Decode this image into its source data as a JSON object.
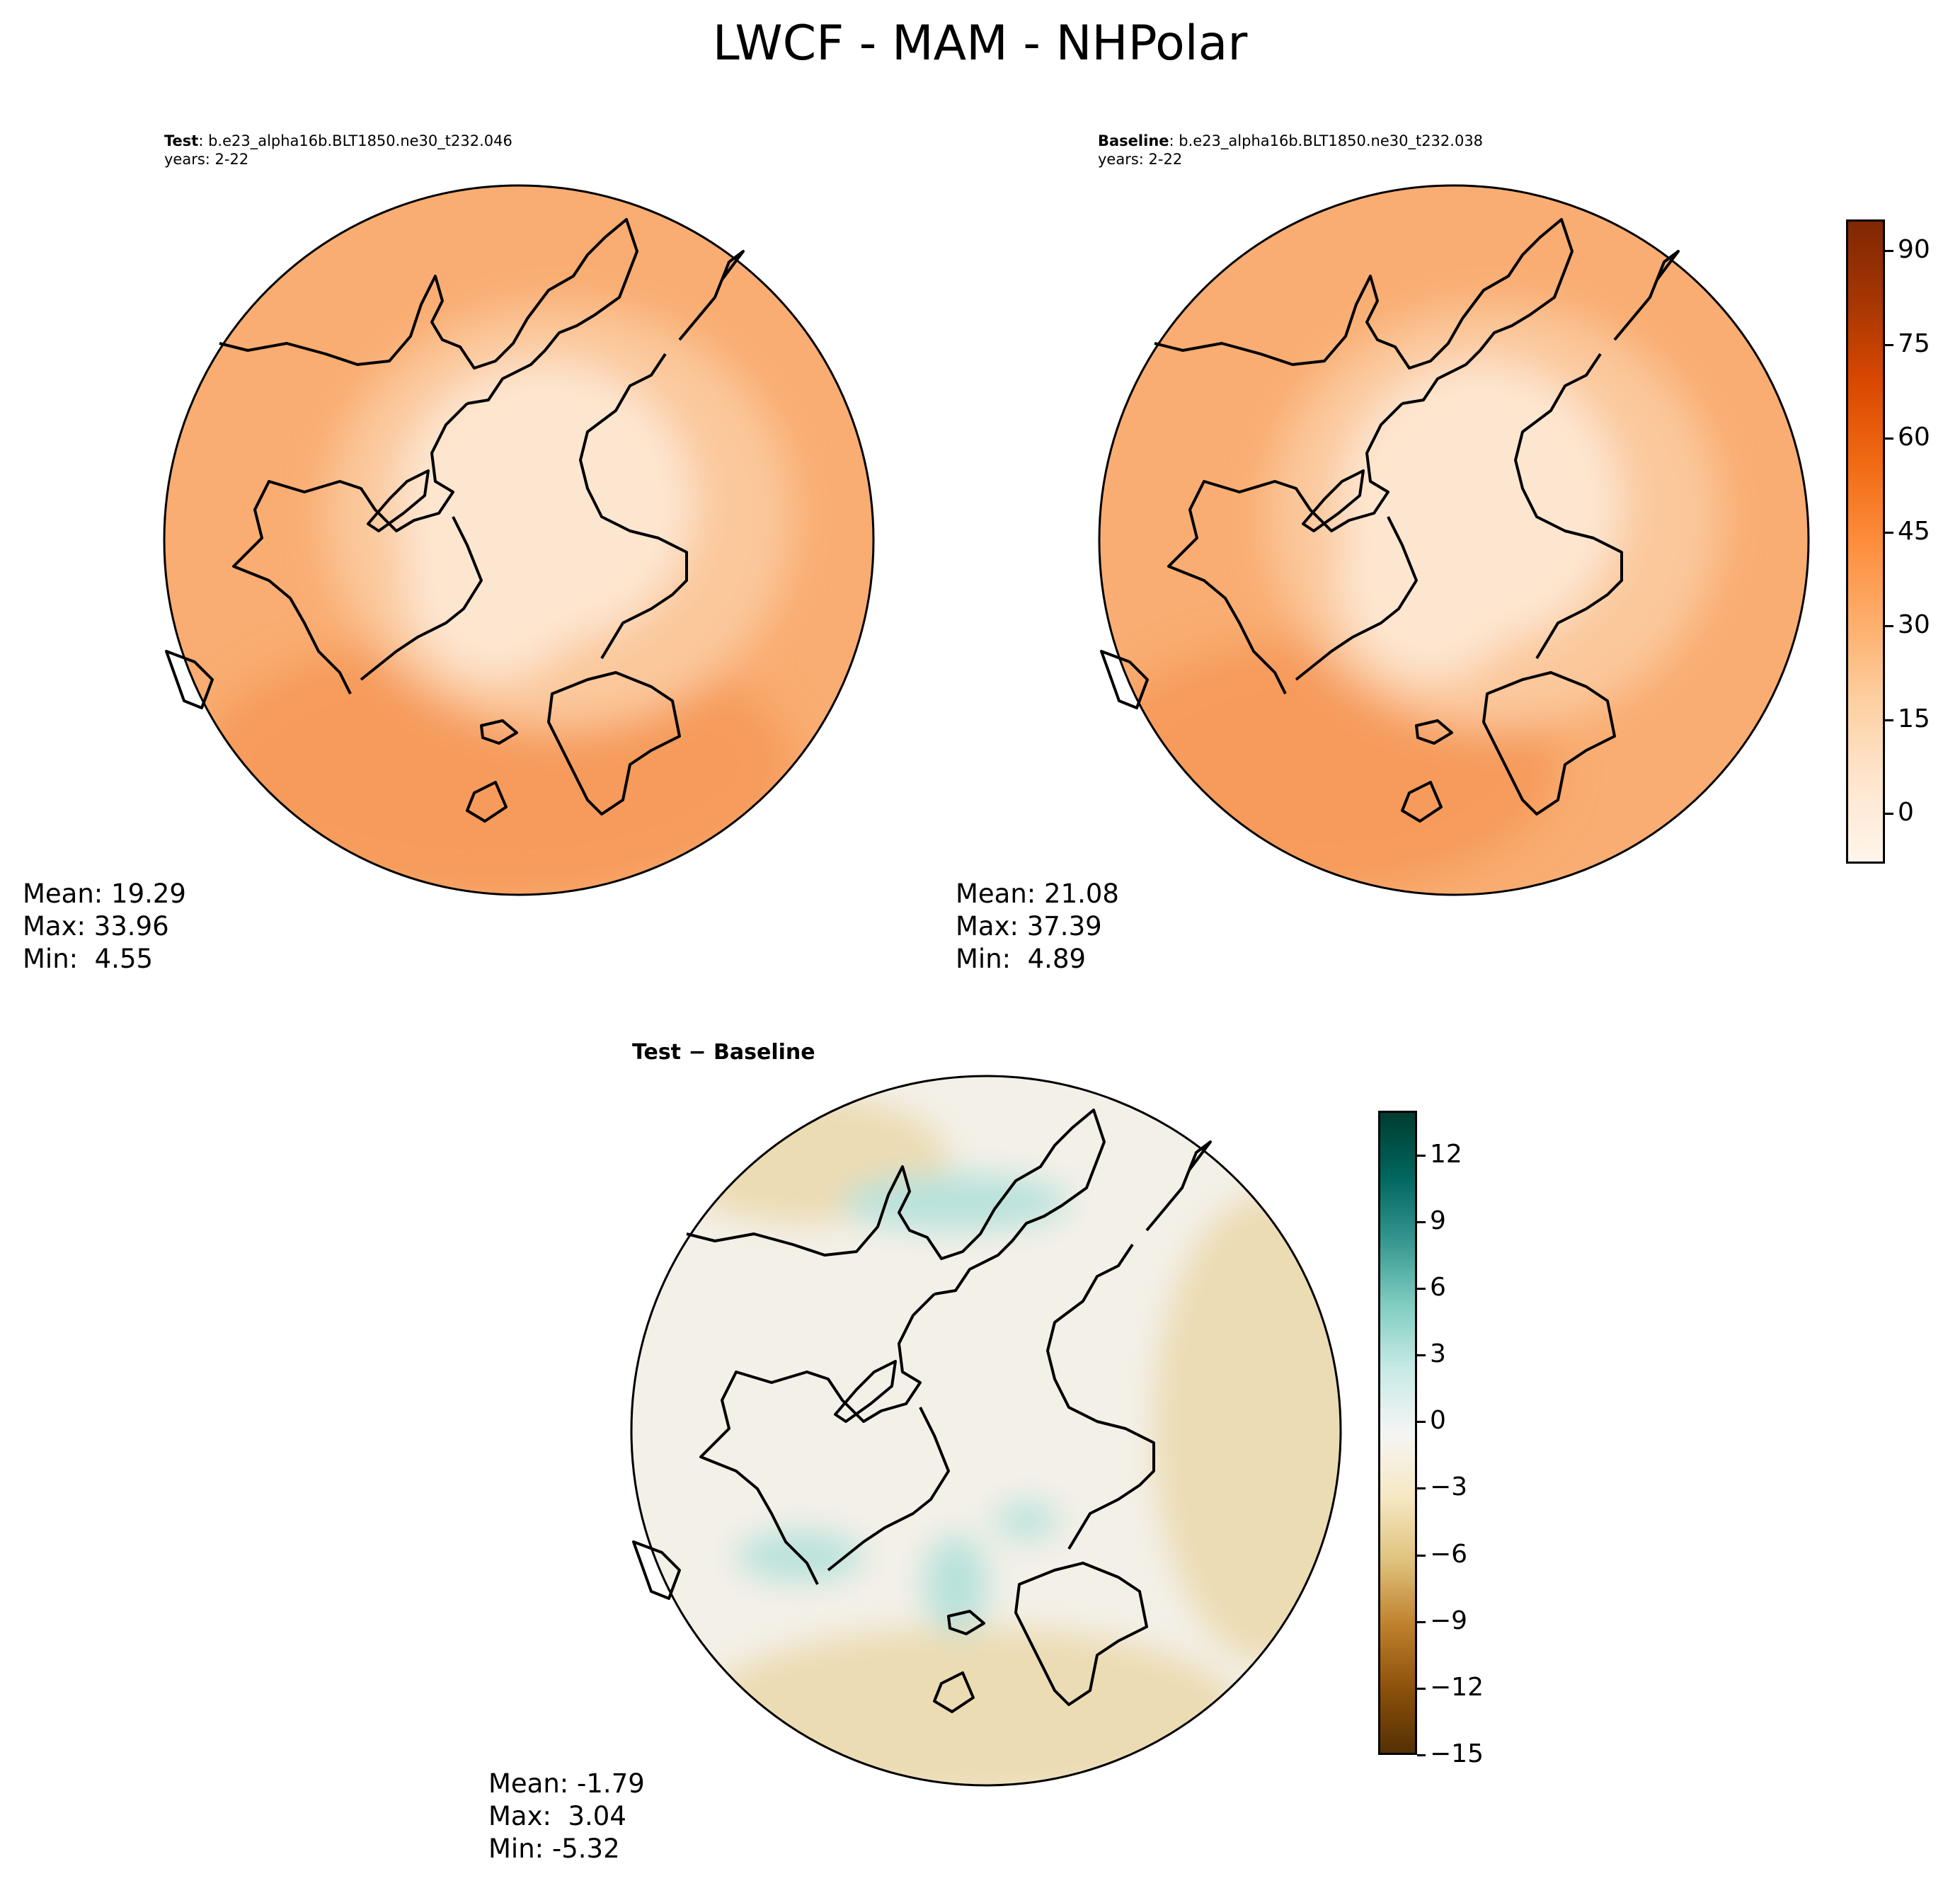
{
  "figure_title": "LWCF - MAM - NHPolar",
  "panels": {
    "test": {
      "label_bold": "Test",
      "case": ": b.e23_alpha16b.BLT1850.ne30_t232.046",
      "years": "years: 2-22",
      "mean": "Mean: 19.29",
      "max": "Max: 33.96",
      "min": "Min:  4.55"
    },
    "baseline": {
      "label_bold": "Baseline",
      "case": ": b.e23_alpha16b.BLT1850.ne30_t232.038",
      "years": "years: 2-22",
      "mean": "Mean: 21.08",
      "max": "Max: 37.39",
      "min": "Min:  4.89"
    },
    "diff": {
      "title": "Test − Baseline",
      "mean": "Mean: -1.79",
      "max": "Max:  3.04",
      "min": "Min: -5.32"
    }
  },
  "colorbars": {
    "field": {
      "ticks": [
        "90",
        "75",
        "60",
        "45",
        "30",
        "15",
        "0"
      ],
      "tick_values": [
        90,
        75,
        60,
        45,
        30,
        15,
        0
      ],
      "range": [
        -8,
        95
      ],
      "colormap": "Oranges"
    },
    "diff": {
      "ticks": [
        "12",
        "9",
        "6",
        "3",
        "0",
        "−3",
        "−6",
        "−9",
        "−12",
        "−15"
      ],
      "tick_values": [
        12,
        9,
        6,
        3,
        0,
        -3,
        -6,
        -9,
        -12,
        -15
      ],
      "range": [
        -15,
        14
      ],
      "colormap": "BrBG"
    }
  },
  "colors": {
    "field_outer": "#f9ad72",
    "field_mid": "#fbc89b",
    "field_inner": "#fde6d0",
    "field_warm": "#f69b5c",
    "diff_base": "#f3f0e8",
    "diff_tan": "#ecdcb4",
    "diff_teal": "#b7e2db"
  }
}
